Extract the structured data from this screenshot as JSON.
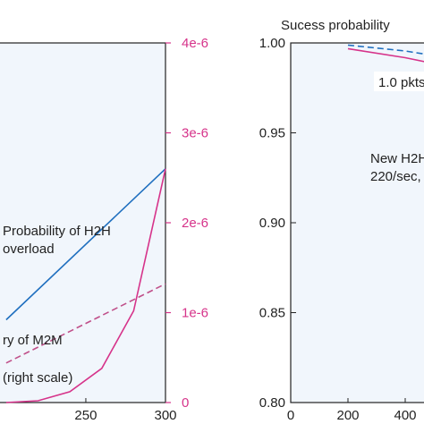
{
  "chart_data": [
    {
      "type": "line",
      "title": "",
      "xlabel": "",
      "ylabel": "",
      "xlim": [
        195,
        300
      ],
      "x_ticks": [
        250,
        300
      ],
      "x_tick_labels": [
        "250",
        "300"
      ],
      "right_axis": {
        "ylim": [
          0,
          4e-06
        ],
        "ticks": [
          0,
          1e-06,
          2e-06,
          3e-06,
          4e-06
        ],
        "tick_labels": [
          "0",
          "1e-6",
          "2e-6",
          "3e-6",
          "4e-6"
        ],
        "color": "#d6338a"
      },
      "grid": false,
      "background": "#f1f6fc",
      "series": [
        {
          "color": "#1f6fbf",
          "style": "solid",
          "axis": "left",
          "x": [
            200,
            300
          ],
          "y": [
            0.23,
            0.65
          ]
        },
        {
          "color": "#c0508a",
          "style": "dashed",
          "axis": "left",
          "x": [
            200,
            300
          ],
          "y": [
            0.11,
            0.33
          ]
        },
        {
          "color": "#d6338a",
          "style": "solid",
          "axis": "right",
          "x": [
            200,
            220,
            240,
            260,
            280,
            300
          ],
          "y": [
            0,
            2e-08,
            1.2e-07,
            3.8e-07,
            1.02e-06,
            2.6e-06
          ]
        }
      ],
      "annotations": {
        "h2h_overload": [
          "Probability of H2H",
          "overload"
        ],
        "m2m": [
          "ry of M2M",
          "(right scale)"
        ]
      }
    },
    {
      "type": "line",
      "title": "Sucess probability",
      "xlabel": "",
      "ylabel": "",
      "xlim": [
        0,
        500
      ],
      "ylim": [
        0.8,
        1.0
      ],
      "y_ticks": [
        0.8,
        0.85,
        0.9,
        0.95,
        1.0
      ],
      "y_tick_labels": [
        "0.80",
        "0.85",
        "0.90",
        "0.95",
        "1.00"
      ],
      "x_ticks": [
        0,
        200,
        400
      ],
      "x_tick_labels": [
        "0",
        "200",
        "400"
      ],
      "grid": false,
      "background": "#f1f6fc",
      "series": [
        {
          "color": "#1f6fbf",
          "style": "dashed",
          "x": [
            200,
            400,
            500
          ],
          "y": [
            0.9988,
            0.9955,
            0.993
          ]
        },
        {
          "color": "#d6338a",
          "style": "solid",
          "x": [
            200,
            400,
            500
          ],
          "y": [
            0.9968,
            0.9918,
            0.9885
          ]
        }
      ],
      "annotations": {
        "pkts": "1.0 pkts",
        "new_h2h": [
          "New H2H",
          "220/sec,"
        ]
      }
    }
  ]
}
